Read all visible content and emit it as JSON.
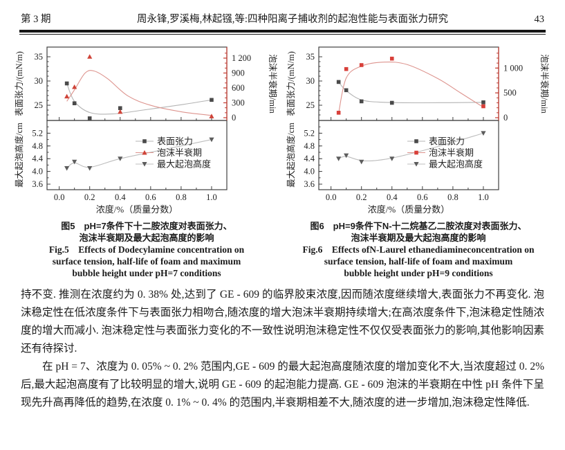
{
  "header": {
    "issue": "第 3 期",
    "title": "周永锋,罗溪梅,林起镪,等:四种阳离子捕收剂的起泡性能与表面张力研究",
    "page": "43"
  },
  "figures": [
    {
      "caption_cn": [
        "图5　pH=7条件下十二胺浓度对表面张力、",
        "泡沫半衰期及最大起泡高度的影响"
      ],
      "caption_en": [
        "Fig.5　Effects of Dodecylamine concentration on",
        "surface tension, half-life of foam and maximum",
        "bubble height under pH=7 conditions"
      ]
    },
    {
      "caption_cn": [
        "图6　pH=9条件下N-十二烷基乙二胺浓度对表面张力、",
        "泡沫半衰期及最大起泡高度的影响"
      ],
      "caption_en": [
        "Fig.6　Effects ofN-Laurel ethanediamineconcentration on",
        "surface tension, half-life of foam and maximum",
        "bubble height under pH=9 conditions"
      ]
    }
  ],
  "chart_data": [
    {
      "id": "fig5",
      "type": "line",
      "title": "图5 pH=7 十二胺",
      "x": [
        0.05,
        0.1,
        0.2,
        0.4,
        1.0
      ],
      "x_axis": {
        "label": "浓度/%（质量分数）",
        "ticks": [
          0.0,
          0.2,
          0.4,
          0.6,
          0.8,
          1.0
        ],
        "tick_labels": [
          "0.0",
          "0.2",
          "0.4",
          "0.6",
          "0.8",
          "1.0"
        ],
        "range": [
          -0.08,
          1.1
        ]
      },
      "left_axis": {
        "label": "表面张力/(mN/m)",
        "ticks": [
          25,
          30,
          35
        ],
        "tick_labels": [
          "25",
          "30",
          "35"
        ],
        "range": [
          21.9,
          37
        ]
      },
      "right_axis": {
        "label": "泡沫半衰期/min",
        "ticks": [
          0,
          300,
          600,
          900,
          1200
        ],
        "tick_labels": [
          "0",
          "300",
          "600",
          "900",
          "1 200"
        ],
        "range": [
          0,
          1400
        ],
        "minor_step": 100
      },
      "bottom_axis": {
        "label": "最大起泡高度/cm",
        "ticks": [
          3.6,
          4.0,
          4.4,
          4.8,
          5.2
        ],
        "tick_labels": [
          "3.6",
          "4.0",
          "4.4",
          "4.8",
          "5.2"
        ],
        "range": [
          3.43,
          5.6
        ]
      },
      "series": [
        {
          "name": "表面张力",
          "axis": "left",
          "marker": "square",
          "marker_color": "#4a4a4a",
          "line_color": "#b3b3b3",
          "values": [
            29.5,
            25.4,
            22.3,
            24.4,
            26.1
          ],
          "fit": [
            [
              0.05,
              29.5
            ],
            [
              0.1,
              25.8
            ],
            [
              0.2,
              23.5
            ],
            [
              0.35,
              23.2
            ],
            [
              0.55,
              24.0
            ],
            [
              0.8,
              25.1
            ],
            [
              1.0,
              26.1
            ]
          ]
        },
        {
          "name": "泡沫半衰期",
          "axis": "right",
          "marker": "triangle-up",
          "marker_color": "#cf4338",
          "line_color": "#dd938d",
          "values": [
            430,
            620,
            1230,
            120,
            30
          ],
          "fit": [
            [
              0.05,
              330
            ],
            [
              0.1,
              560
            ],
            [
              0.17,
              900
            ],
            [
              0.23,
              940
            ],
            [
              0.32,
              780
            ],
            [
              0.45,
              440
            ],
            [
              0.6,
              250
            ],
            [
              0.8,
              120
            ],
            [
              1.0,
              45
            ]
          ]
        },
        {
          "name": "最大起泡高度",
          "axis": "bottom",
          "marker": "triangle-down",
          "marker_color": "#5c5c5c",
          "line_color": "#bdbdbd",
          "values": [
            4.1,
            4.3,
            4.1,
            4.4,
            5.0
          ],
          "fit": [
            [
              0.05,
              4.1
            ],
            [
              0.1,
              4.27
            ],
            [
              0.2,
              4.13
            ],
            [
              0.4,
              4.4
            ],
            [
              0.7,
              4.7
            ],
            [
              1.0,
              5.0
            ]
          ]
        }
      ],
      "legend": [
        "表面张力",
        "泡沫半衰期",
        "最大起泡高度"
      ],
      "legend_position": "bottom-panel-right",
      "grid": false,
      "colors": {
        "frame": "#3f3f3f",
        "right_axis": "#c43a2f",
        "tick_text": "#222222"
      }
    },
    {
      "id": "fig6",
      "type": "line",
      "title": "图6 pH=9 N-十二烷基乙二胺",
      "x": [
        0.05,
        0.1,
        0.2,
        0.4,
        1.0
      ],
      "x_axis": {
        "label": "浓度/%（质量分数）",
        "ticks": [
          0.0,
          0.2,
          0.4,
          0.6,
          0.8,
          1.0
        ],
        "tick_labels": [
          "0.0",
          "0.2",
          "0.4",
          "0.6",
          "0.8",
          "1.0"
        ],
        "range": [
          -0.08,
          1.1
        ]
      },
      "left_axis": {
        "label": "表面张力/(mN/m)",
        "ticks": [
          25,
          30,
          35
        ],
        "tick_labels": [
          "25",
          "30",
          "35"
        ],
        "range": [
          21.9,
          37
        ]
      },
      "right_axis": {
        "label": "泡沫半衰期/min",
        "ticks": [
          0,
          500,
          1000
        ],
        "tick_labels": [
          "0",
          "500",
          "1 000"
        ],
        "range": [
          0,
          1400
        ],
        "minor_step": 100
      },
      "bottom_axis": {
        "label": "最大起泡高度/cm",
        "ticks": [
          3.6,
          4.0,
          4.4,
          4.8,
          5.2
        ],
        "tick_labels": [
          "3.6",
          "4.0",
          "4.4",
          "4.8",
          "5.2"
        ],
        "range": [
          3.43,
          5.6
        ]
      },
      "series": [
        {
          "name": "表面张力",
          "axis": "left",
          "marker": "square",
          "marker_color": "#4a4a4a",
          "line_color": "#b3b3b3",
          "values": [
            29.8,
            28.1,
            25.8,
            25.5,
            25.6
          ],
          "fit": [
            [
              0.05,
              29.8
            ],
            [
              0.1,
              28.0
            ],
            [
              0.2,
              26.1
            ],
            [
              0.35,
              25.6
            ],
            [
              0.6,
              25.5
            ],
            [
              1.0,
              25.6
            ]
          ]
        },
        {
          "name": "泡沫半衰期",
          "axis": "right",
          "marker": "square",
          "marker_color": "#d8403a",
          "line_color": "#dd938d",
          "values": [
            100,
            980,
            1060,
            1190,
            230
          ],
          "fit": [
            [
              0.05,
              90
            ],
            [
              0.1,
              800
            ],
            [
              0.2,
              1040
            ],
            [
              0.35,
              1120
            ],
            [
              0.5,
              1070
            ],
            [
              0.7,
              790
            ],
            [
              0.85,
              500
            ],
            [
              1.0,
              210
            ]
          ]
        },
        {
          "name": "最大起泡高度",
          "axis": "bottom",
          "marker": "triangle-down",
          "marker_color": "#5c5c5c",
          "line_color": "#bdbdbd",
          "values": [
            4.4,
            4.5,
            4.3,
            4.4,
            5.2
          ],
          "fit": [
            [
              0.05,
              4.4
            ],
            [
              0.1,
              4.47
            ],
            [
              0.22,
              4.33
            ],
            [
              0.4,
              4.42
            ],
            [
              0.7,
              4.78
            ],
            [
              1.0,
              5.2
            ]
          ]
        }
      ],
      "legend": [
        "表面张力",
        "泡沫半衰期",
        "最大起泡高度"
      ],
      "legend_position": "bottom-panel-right",
      "grid": false,
      "colors": {
        "frame": "#3f3f3f",
        "right_axis": "#c43a2f",
        "tick_text": "#222222"
      }
    }
  ],
  "paragraphs": [
    "持不变. 推测在浓度约为 0. 38% 处,达到了 GE - 609 的临界胶束浓度,因而随浓度继续增大,表面张力不再变化. 泡沫稳定性在低浓度条件下与表面张力相吻合,随浓度的增大泡沫半衰期持续增大;在高浓度条件下,泡沫稳定性随浓度的增大而减小. 泡沫稳定性与表面张力变化的不一致性说明泡沫稳定性不仅仅受表面张力的影响,其他影响因素还有待探讨.",
    "在 pH = 7、浓度为 0. 05% ~ 0. 2% 范围内,GE - 609 的最大起泡高度随浓度的增加变化不大,当浓度超过 0. 2% 后,最大起泡高度有了比较明显的增大,说明 GE - 609 的起泡能力提高. GE - 609 泡沫的半衰期在中性 pH 条件下呈现先升高再降低的趋势,在浓度 0. 1% ~ 0. 4% 的范围内,半衰期相差不大,随浓度的进一步增加,泡沫稳定性降低."
  ]
}
